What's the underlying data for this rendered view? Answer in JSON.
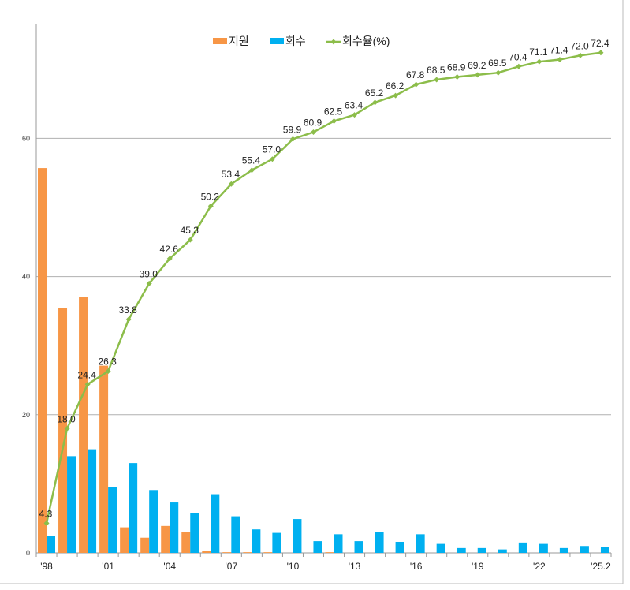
{
  "chart_data": {
    "type": "bar+line",
    "title": "",
    "categories": [
      "'98",
      "'99",
      "'00",
      "'01",
      "'02",
      "'03",
      "'04",
      "'05",
      "'06",
      "'07",
      "'08",
      "'09",
      "'10",
      "'11",
      "'12",
      "'13",
      "'14",
      "'15",
      "'16",
      "'17",
      "'18",
      "'19",
      "'20",
      "'21",
      "'22",
      "'23",
      "'24",
      "'25.2"
    ],
    "x_tick_labels": [
      "'98",
      "'01",
      "'04",
      "'07",
      "'10",
      "'13",
      "'16",
      "'19",
      "'22",
      "'25.2"
    ],
    "y_ticks": [
      0,
      20,
      40,
      60
    ],
    "ylim": [
      0,
      76.6
    ],
    "grid": true,
    "legend": "top-center",
    "series": [
      {
        "name": "지원",
        "type": "bar",
        "color": "#f79646",
        "values": [
          55.7,
          35.5,
          37.1,
          27.1,
          3.7,
          2.2,
          3.9,
          3.0,
          0.3,
          0.1,
          0.1,
          0.1,
          0,
          0,
          0.1,
          0,
          0,
          0,
          0,
          0,
          0,
          0,
          0,
          0,
          0,
          0,
          0,
          0
        ]
      },
      {
        "name": "회수",
        "type": "bar",
        "color": "#00b0f0",
        "values": [
          2.4,
          14.0,
          15.0,
          9.5,
          13.0,
          9.1,
          7.3,
          5.8,
          8.5,
          5.3,
          3.4,
          2.9,
          4.9,
          1.7,
          2.7,
          1.7,
          3.0,
          1.6,
          2.7,
          1.3,
          0.7,
          0.7,
          0.5,
          1.5,
          1.3,
          0.7,
          1.0,
          0.8
        ]
      },
      {
        "name": "회수율(%)",
        "type": "line",
        "color": "#8cbd4a",
        "values": [
          4.3,
          18.0,
          24.4,
          26.3,
          33.8,
          39.0,
          42.6,
          45.3,
          50.2,
          53.4,
          55.4,
          57.0,
          59.9,
          60.9,
          62.5,
          63.4,
          65.2,
          66.2,
          67.8,
          68.5,
          68.9,
          69.2,
          69.5,
          70.4,
          71.1,
          71.4,
          72.0,
          72.4
        ],
        "labels": [
          "4.3",
          "18.0",
          "24.4",
          "26.3",
          "33.8",
          "39.0",
          "42.6",
          "45.3",
          "50.2",
          "53.4",
          "55.4",
          "57.0",
          "59.9",
          "60.9",
          "62.5",
          "63.4",
          "65.2",
          "66.2",
          "67.8",
          "68.5",
          "68.9",
          "69.2",
          "69.5",
          "70.4",
          "71.1",
          "71.4",
          "72.0",
          "72.4"
        ]
      }
    ]
  }
}
